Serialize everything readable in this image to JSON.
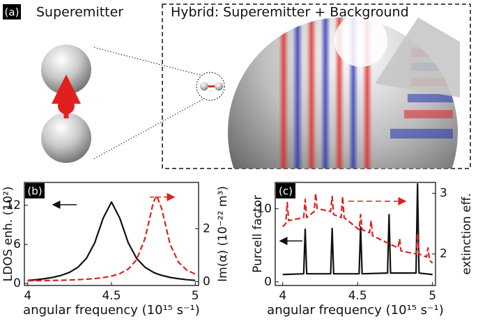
{
  "panel_a": {
    "label": "(a)",
    "title": "Superemitter",
    "inset_title": "Hybrid: Superemitter + Background"
  },
  "chart_data": [
    {
      "type": "line",
      "panel_label": "(b)",
      "x_label": "angular frequency (10¹⁵ s⁻¹)",
      "y_label": "LDOS enh. (10²)",
      "y2_label": "Im(α) (10⁻²² m³)",
      "xlim": [
        3.98,
        5.02
      ],
      "xticks": [
        4,
        4.5,
        5
      ],
      "ylim": [
        -0.3,
        15.5
      ],
      "yticks": [
        0,
        6,
        12
      ],
      "y2lim": [
        -0.15,
        3.75
      ],
      "y2ticks": [
        0,
        2
      ],
      "x": [
        4.0,
        4.05,
        4.1,
        4.15,
        4.2,
        4.25,
        4.3,
        4.35,
        4.4,
        4.45,
        4.5,
        4.55,
        4.6,
        4.65,
        4.7,
        4.75,
        4.77,
        4.8,
        4.85,
        4.9,
        4.95,
        5.0
      ],
      "series": [
        {
          "color": "#111111",
          "style": "solid",
          "values": [
            0.48,
            0.59,
            0.74,
            0.94,
            1.25,
            1.72,
            2.5,
            3.85,
            6.25,
            10,
            12.5,
            10,
            6.25,
            3.85,
            2.5,
            1.72,
            1.51,
            1.25,
            0.94,
            0.74,
            0.59,
            0.48
          ]
        },
        {
          "color": "#e0201e",
          "style": "dashed",
          "axis": "y2",
          "values": [
            0.027,
            0.03,
            0.035,
            0.041,
            0.048,
            0.058,
            0.07,
            0.088,
            0.112,
            0.148,
            0.205,
            0.299,
            0.471,
            0.825,
            1.625,
            3.0,
            3.25,
            2.75,
            1.41,
            0.73,
            0.43,
            0.28
          ]
        }
      ]
    },
    {
      "type": "line",
      "panel_label": "(c)",
      "x_label": "angular frequency (10¹⁵ s⁻¹)",
      "y_label": "Purcell factor",
      "y2_label": "extinction eff.",
      "xlim": [
        3.95,
        5.02
      ],
      "xticks": [
        4,
        4.5,
        5
      ],
      "ylim": [
        -0.5,
        13.6
      ],
      "yticks": [
        0,
        10
      ],
      "y2lim": [
        1.48,
        3.18
      ],
      "y2ticks": [
        2,
        3
      ],
      "series": [
        {
          "color": "#111111",
          "style": "solid",
          "x": [
            4.0,
            4.14,
            4.15,
            4.16,
            4.32,
            4.33,
            4.34,
            4.51,
            4.52,
            4.53,
            4.7,
            4.71,
            4.72,
            4.89,
            4.9,
            4.91,
            5.0
          ],
          "values": [
            1.0,
            1.1,
            7.2,
            1.1,
            1.1,
            7.3,
            1.1,
            1.1,
            7.5,
            1.1,
            1.2,
            9.2,
            1.2,
            1.2,
            13.4,
            1.2,
            1.0
          ]
        },
        {
          "color": "#e0201e",
          "style": "dashed",
          "axis": "y2",
          "x": [
            4.0,
            4.02,
            4.03,
            4.04,
            4.14,
            4.15,
            4.16,
            4.21,
            4.22,
            4.23,
            4.32,
            4.33,
            4.34,
            4.39,
            4.4,
            4.41,
            4.51,
            4.52,
            4.53,
            4.58,
            4.59,
            4.6,
            4.77,
            4.78,
            4.79,
            4.89,
            4.9,
            4.91,
            4.96,
            4.97,
            4.98,
            5.0
          ],
          "values": [
            2.45,
            2.5,
            2.85,
            2.55,
            2.6,
            2.9,
            2.6,
            2.7,
            3.0,
            2.75,
            2.7,
            2.95,
            2.65,
            2.6,
            2.95,
            2.6,
            2.4,
            2.65,
            2.4,
            2.35,
            2.55,
            2.3,
            2.1,
            2.25,
            2.05,
            2.0,
            2.35,
            2.0,
            1.95,
            2.1,
            1.9,
            1.85
          ]
        }
      ]
    }
  ]
}
